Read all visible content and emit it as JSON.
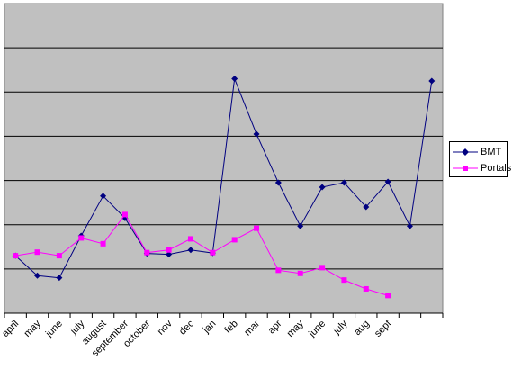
{
  "chart_data": {
    "type": "line",
    "title": "",
    "xlabel": "",
    "ylabel": "",
    "categories": [
      "april",
      "may",
      "june",
      "july",
      "august",
      "september",
      "october",
      "nov",
      "dec",
      "jan",
      "feb",
      "mar",
      "apr",
      "may",
      "june",
      "july",
      "aug",
      "sept",
      "",
      ""
    ],
    "ylim": [
      0,
      7
    ],
    "y_gridlines": [
      1,
      2,
      3,
      4,
      5,
      6
    ],
    "y_tick_labels_shown": false,
    "grid": true,
    "plot_background": "#c0c0c0",
    "legend_position": "right",
    "series": [
      {
        "name": "BMT",
        "color": "#000080",
        "marker": "diamond",
        "values": [
          1.3,
          0.85,
          0.8,
          1.75,
          2.65,
          2.15,
          1.35,
          1.33,
          1.43,
          1.36,
          5.3,
          4.05,
          2.95,
          1.97,
          2.85,
          2.95,
          2.4,
          2.97,
          1.97,
          5.25
        ]
      },
      {
        "name": "Portals",
        "color": "#ff00ff",
        "marker": "square",
        "values": [
          1.3,
          1.38,
          1.3,
          1.7,
          1.57,
          2.23,
          1.37,
          1.43,
          1.68,
          1.37,
          1.66,
          1.92,
          0.97,
          0.9,
          1.03,
          0.75,
          0.55,
          0.4,
          null,
          null
        ]
      }
    ]
  }
}
